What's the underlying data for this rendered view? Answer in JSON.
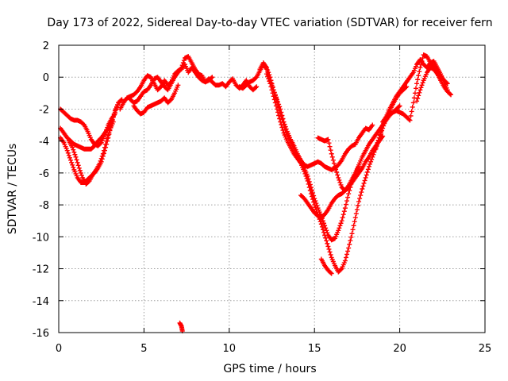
{
  "chart_data": {
    "type": "scatter",
    "title": "Day 173 of 2022, Sidereal Day-to-day VTEC variation (SDTVAR) for receiver fern",
    "xlabel": "GPS time / hours",
    "ylabel": "SDTVAR / TECUs",
    "xlim": [
      0,
      25
    ],
    "ylim": [
      -16,
      2
    ],
    "xticks": [
      0,
      5,
      10,
      15,
      20,
      25
    ],
    "yticks": [
      -16,
      -14,
      -12,
      -10,
      -8,
      -6,
      -4,
      -2,
      0,
      2
    ],
    "grid": true,
    "marker": "plus",
    "color": "#ff0000",
    "series": [
      {
        "x": [
          0.1,
          0.3,
          0.5,
          0.7,
          0.9,
          1.1,
          1.3,
          1.5,
          1.7,
          1.9,
          2.1,
          2.3,
          2.5,
          2.7,
          2.9,
          3.1,
          3.3
        ],
        "y": [
          -2.0,
          -2.2,
          -2.4,
          -2.6,
          -2.7,
          -2.7,
          -2.8,
          -3.0,
          -3.4,
          -3.9,
          -4.2,
          -4.3,
          -4.1,
          -3.6,
          -3.0,
          -2.6,
          -2.3
        ]
      },
      {
        "x": [
          0.1,
          0.3,
          0.5,
          0.7,
          0.9,
          1.1,
          1.3,
          1.5,
          1.7,
          1.9,
          2.1,
          2.3,
          2.5,
          2.7,
          2.9,
          3.1,
          3.3,
          3.5
        ],
        "y": [
          -3.2,
          -3.5,
          -3.8,
          -4.0,
          -4.2,
          -4.3,
          -4.4,
          -4.5,
          -4.5,
          -4.5,
          -4.3,
          -4.0,
          -3.8,
          -3.5,
          -3.2,
          -2.8,
          -2.2,
          -1.6
        ]
      },
      {
        "x": [
          0.1,
          0.3,
          0.5,
          0.7,
          0.9,
          1.1,
          1.3,
          1.5,
          1.7,
          1.9,
          2.1,
          2.3,
          2.5,
          2.7,
          2.9,
          3.1,
          3.3,
          3.5,
          3.7
        ],
        "y": [
          -3.8,
          -4.1,
          -4.6,
          -5.2,
          -5.8,
          -6.3,
          -6.6,
          -6.6,
          -6.4,
          -6.2,
          -6.0,
          -5.7,
          -5.3,
          -4.6,
          -3.8,
          -2.9,
          -2.1,
          -1.6,
          -1.4
        ]
      },
      {
        "x": [
          0.6,
          0.8,
          1.0,
          1.2,
          1.4,
          1.6,
          1.8,
          2.0,
          2.2,
          2.4,
          2.6,
          2.8,
          3.0,
          3.2
        ],
        "y": [
          -4.0,
          -4.4,
          -5.0,
          -5.7,
          -6.3,
          -6.7,
          -6.5,
          -6.1,
          -5.8,
          -5.4,
          -4.8,
          -4.0,
          -3.3,
          -2.8
        ]
      },
      {
        "x": [
          3.6,
          3.8,
          4.0,
          4.2,
          4.4,
          4.6,
          4.8,
          5.0,
          5.2,
          5.4,
          5.6,
          5.8,
          6.0,
          6.2,
          6.4,
          6.6,
          6.8,
          7.0,
          7.2,
          7.4,
          7.6,
          7.8,
          8.0,
          8.2,
          8.4,
          8.6,
          8.8,
          9.0,
          9.2,
          9.4,
          9.6,
          9.8,
          10.0,
          10.2,
          10.4,
          10.6,
          10.8,
          11.0,
          11.2,
          11.4,
          11.6
        ],
        "y": [
          -2.0,
          -1.6,
          -1.3,
          -1.2,
          -1.1,
          -0.9,
          -0.6,
          -0.2,
          0.1,
          0.0,
          -0.4,
          -0.8,
          -0.6,
          -0.2,
          -0.5,
          -0.3,
          0.2,
          0.4,
          0.5,
          0.8,
          0.3,
          0.6,
          0.3,
          0.0,
          -0.2,
          -0.3,
          -0.1,
          -0.3,
          -0.5,
          -0.5,
          -0.4,
          -0.6,
          -0.3,
          -0.1,
          -0.5,
          -0.7,
          -0.5,
          -0.2,
          -0.6,
          -0.8,
          -0.6
        ]
      },
      {
        "x": [
          4.2,
          4.4,
          4.6,
          4.8,
          5.0,
          5.2,
          5.4,
          5.6,
          5.8,
          6.0,
          6.2,
          6.4,
          6.6,
          6.8,
          7.0,
          7.2,
          7.4,
          7.6,
          7.8,
          8.0,
          8.2,
          8.4,
          8.6,
          8.8,
          9.0
        ],
        "y": [
          -1.4,
          -1.6,
          -1.5,
          -1.2,
          -0.9,
          -0.8,
          -0.5,
          -0.1,
          0.0,
          -0.3,
          -0.6,
          -0.8,
          -0.4,
          0.0,
          0.3,
          0.6,
          1.2,
          1.3,
          0.9,
          0.5,
          0.2,
          0.1,
          -0.3,
          -0.2,
          0.0
        ]
      },
      {
        "x": [
          4.4,
          4.6,
          4.8,
          5.0,
          5.2,
          5.4,
          5.6,
          5.8,
          6.0,
          6.2,
          6.4,
          6.6,
          6.8,
          7.0
        ],
        "y": [
          -1.8,
          -2.1,
          -2.3,
          -2.2,
          -1.9,
          -1.8,
          -1.7,
          -1.6,
          -1.5,
          -1.3,
          -1.6,
          -1.4,
          -1.0,
          -0.5
        ]
      },
      {
        "x": [
          7.1,
          7.2,
          7.25
        ],
        "y": [
          -15.4,
          -15.6,
          -15.9
        ]
      },
      {
        "x": [
          10.6,
          10.8,
          11.0,
          11.2,
          11.4,
          11.6,
          11.8,
          12.0,
          12.2,
          12.4,
          12.6,
          12.8,
          13.0,
          13.2,
          13.4,
          13.6,
          13.8,
          14.0,
          14.2,
          14.4,
          14.6,
          14.8,
          15.0,
          15.2,
          15.4,
          15.6,
          15.8,
          16.0,
          16.2,
          16.4,
          16.6,
          16.8,
          17.0,
          17.2,
          17.4,
          17.6,
          17.8,
          18.0,
          18.2,
          18.4
        ],
        "y": [
          -0.6,
          -0.7,
          -0.5,
          -0.3,
          -0.2,
          0.0,
          0.4,
          0.8,
          0.5,
          -0.2,
          -0.8,
          -1.4,
          -2.0,
          -2.8,
          -3.4,
          -3.9,
          -4.3,
          -4.8,
          -5.2,
          -5.5,
          -5.6,
          -5.5,
          -5.4,
          -5.3,
          -5.4,
          -5.6,
          -5.7,
          -5.8,
          -5.7,
          -5.5,
          -5.2,
          -4.8,
          -4.5,
          -4.3,
          -4.2,
          -3.8,
          -3.5,
          -3.2,
          -3.3,
          -3.0
        ]
      },
      {
        "x": [
          11.8,
          12.0,
          12.2,
          12.4,
          12.6,
          12.8,
          13.0,
          13.2,
          13.4,
          13.6,
          13.8,
          14.0,
          14.2,
          14.4,
          14.6,
          14.8,
          15.0,
          15.2,
          15.4,
          15.6,
          15.8,
          16.0,
          16.2,
          16.4,
          16.6,
          16.8,
          17.0,
          17.2,
          17.4,
          17.6,
          17.8,
          18.0,
          18.2,
          18.4,
          18.6,
          18.8,
          19.0,
          19.2,
          19.4,
          19.6,
          19.8,
          20.0
        ],
        "y": [
          0.5,
          0.9,
          0.6,
          0.0,
          -0.8,
          -1.5,
          -2.3,
          -3.0,
          -3.6,
          -4.1,
          -4.5,
          -4.9,
          -5.3,
          -5.7,
          -6.2,
          -6.9,
          -7.6,
          -8.2,
          -8.7,
          -9.3,
          -9.9,
          -10.2,
          -10.1,
          -9.6,
          -9.0,
          -8.2,
          -7.3,
          -6.5,
          -6.0,
          -5.5,
          -5.0,
          -4.6,
          -4.2,
          -3.9,
          -3.6,
          -3.3,
          -3.0,
          -2.7,
          -2.4,
          -2.2,
          -2.0,
          -1.8
        ]
      },
      {
        "x": [
          12.2,
          12.4,
          12.6,
          12.8,
          13.0,
          13.2,
          13.4,
          13.6,
          13.8,
          14.0,
          14.2,
          14.4,
          14.6,
          14.8,
          15.0,
          15.2,
          15.4,
          15.6,
          15.8,
          16.0,
          16.2,
          16.4,
          16.6,
          16.8,
          17.0,
          17.2,
          17.4,
          17.6,
          17.8,
          18.0,
          18.2,
          18.4,
          18.6,
          18.8,
          19.0,
          19.2,
          19.4,
          19.6,
          19.8,
          20.0,
          20.2,
          20.4
        ],
        "y": [
          0.2,
          -0.4,
          -1.2,
          -2.0,
          -2.8,
          -3.5,
          -4.0,
          -4.4,
          -4.8,
          -5.1,
          -5.4,
          -5.9,
          -6.5,
          -7.3,
          -8.0,
          -8.6,
          -9.2,
          -9.9,
          -10.6,
          -11.3,
          -11.8,
          -12.2,
          -12.0,
          -11.5,
          -10.7,
          -9.8,
          -8.8,
          -7.8,
          -7.0,
          -6.3,
          -5.6,
          -5.0,
          -4.4,
          -3.8,
          -3.2,
          -2.6,
          -2.1,
          -1.7,
          -1.3,
          -1.0,
          -0.8,
          -0.6
        ]
      },
      {
        "x": [
          14.2,
          14.4,
          14.6,
          14.8,
          15.0,
          15.2,
          15.4,
          15.6,
          15.8,
          16.0,
          16.2,
          16.4,
          16.6,
          16.8,
          17.0,
          17.2,
          17.4,
          17.6,
          17.8,
          18.0,
          18.2,
          18.4,
          18.6,
          18.8,
          19.0
        ],
        "y": [
          -7.4,
          -7.6,
          -7.9,
          -8.2,
          -8.5,
          -8.7,
          -8.8,
          -8.6,
          -8.3,
          -7.9,
          -7.6,
          -7.4,
          -7.3,
          -7.1,
          -6.9,
          -6.6,
          -6.3,
          -6.0,
          -5.7,
          -5.3,
          -5.0,
          -4.6,
          -4.3,
          -4.0,
          -3.7
        ]
      },
      {
        "x": [
          15.2,
          15.4,
          15.6,
          15.8,
          16.0,
          16.2,
          16.4,
          16.6,
          16.8,
          17.0,
          17.2,
          17.4,
          17.6
        ],
        "y": [
          -3.8,
          -3.9,
          -4.0,
          -3.9,
          -4.8,
          -5.6,
          -6.3,
          -6.9,
          -7.1,
          -6.8,
          -6.4,
          -6.0,
          -5.6
        ]
      },
      {
        "x": [
          15.4,
          15.6,
          15.8,
          16.0
        ],
        "y": [
          -11.4,
          -11.8,
          -12.1,
          -12.3
        ]
      },
      {
        "x": [
          18.6,
          18.8,
          19.0,
          19.2,
          19.4,
          19.6,
          19.8,
          20.0,
          20.2,
          20.4,
          20.6,
          20.8,
          21.0,
          21.2,
          21.4,
          21.6,
          21.8,
          22.0,
          22.2,
          22.4,
          22.6,
          22.8
        ],
        "y": [
          -4.5,
          -3.8,
          -3.0,
          -2.5,
          -2.0,
          -1.6,
          -1.2,
          -0.9,
          -0.6,
          -0.3,
          0.0,
          0.3,
          0.8,
          1.1,
          0.8,
          0.6,
          0.9,
          1.0,
          0.6,
          0.2,
          -0.3,
          -0.8
        ]
      },
      {
        "x": [
          19.0,
          19.2,
          19.4,
          19.6,
          19.8,
          20.0,
          20.2,
          20.4,
          20.6,
          20.8,
          21.0,
          21.2,
          21.4,
          21.6,
          21.8,
          22.0,
          22.2,
          22.4,
          22.6,
          22.8
        ],
        "y": [
          -2.8,
          -2.5,
          -2.3,
          -2.2,
          -2.1,
          -2.2,
          -2.3,
          -2.5,
          -2.7,
          -1.6,
          -0.4,
          0.6,
          1.4,
          1.3,
          0.9,
          0.7,
          0.4,
          0.1,
          -0.2,
          -0.4
        ]
      },
      {
        "x": [
          21.0,
          21.2,
          21.4,
          21.6,
          21.8,
          22.0,
          22.2,
          22.4,
          22.6,
          22.8,
          23.0
        ],
        "y": [
          -1.5,
          -0.8,
          -0.2,
          0.3,
          0.6,
          0.5,
          0.2,
          -0.2,
          -0.6,
          -0.9,
          -1.1
        ]
      }
    ]
  }
}
